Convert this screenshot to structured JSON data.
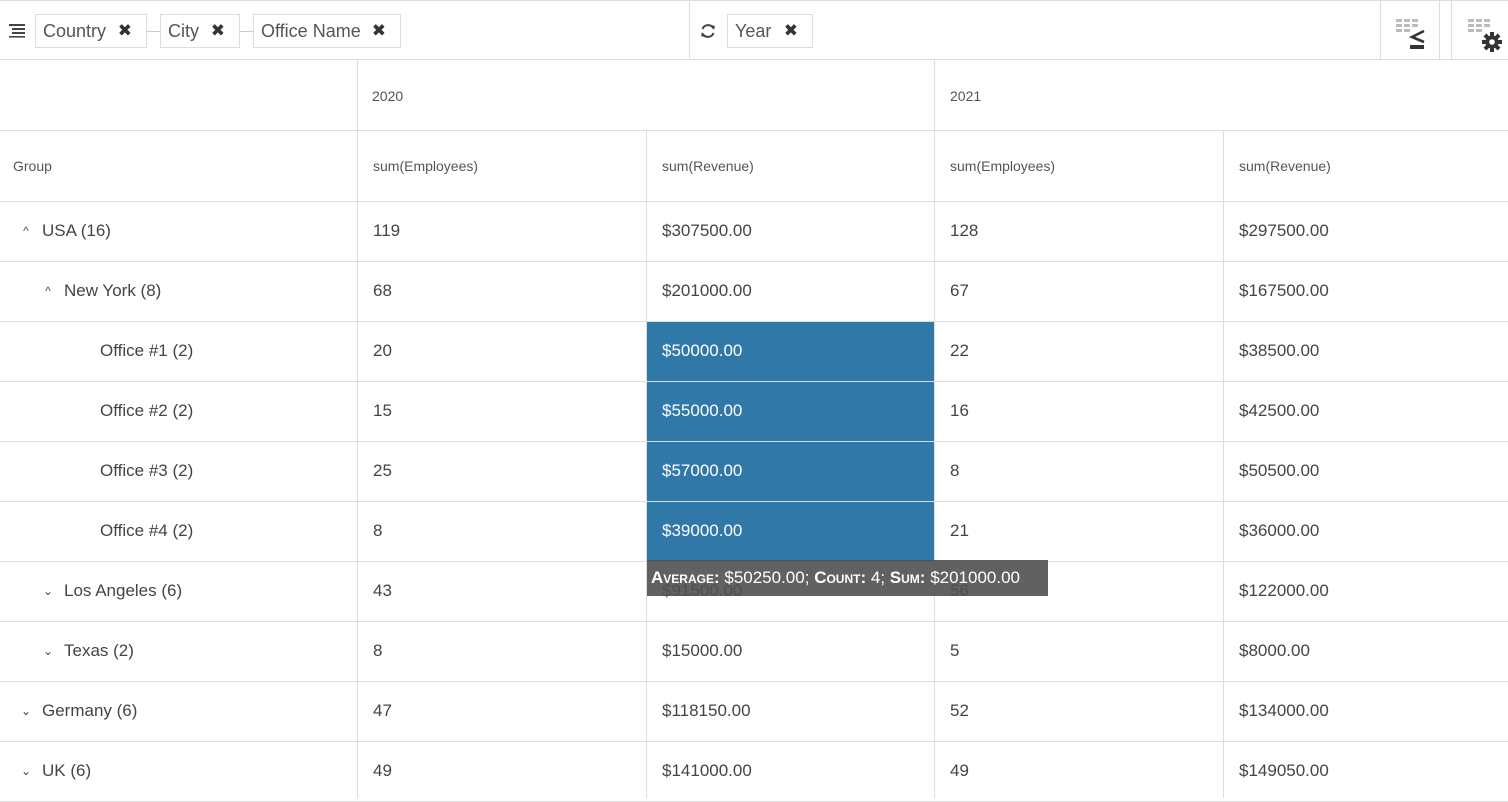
{
  "toolbar": {
    "row_chips": [
      {
        "label": "Country"
      },
      {
        "label": "City"
      },
      {
        "label": "Office Name"
      }
    ],
    "column_chips": [
      {
        "label": "Year"
      }
    ],
    "remove_icon": "close-icon"
  },
  "headers": {
    "years": [
      "2020",
      "2021"
    ],
    "group": "Group",
    "measures": [
      "sum(Employees)",
      "sum(Revenue)",
      "sum(Employees)",
      "sum(Revenue)"
    ]
  },
  "rows": [
    {
      "label": "USA (16)",
      "level": 0,
      "state": "expanded",
      "values": [
        "119",
        "$307500.00",
        "128",
        "$297500.00"
      ]
    },
    {
      "label": "New York (8)",
      "level": 1,
      "state": "expanded",
      "values": [
        "68",
        "$201000.00",
        "67",
        "$167500.00"
      ]
    },
    {
      "label": "Office #1 (2)",
      "level": 2,
      "state": "leaf",
      "values": [
        "20",
        "$50000.00",
        "22",
        "$38500.00"
      ]
    },
    {
      "label": "Office #2 (2)",
      "level": 2,
      "state": "leaf",
      "values": [
        "15",
        "$55000.00",
        "16",
        "$42500.00"
      ]
    },
    {
      "label": "Office #3 (2)",
      "level": 2,
      "state": "leaf",
      "values": [
        "25",
        "$57000.00",
        "8",
        "$50500.00"
      ]
    },
    {
      "label": "Office #4 (2)",
      "level": 2,
      "state": "leaf",
      "values": [
        "8",
        "$39000.00",
        "21",
        "$36000.00"
      ]
    },
    {
      "label": "Los Angeles (6)",
      "level": 1,
      "state": "collapsed",
      "values": [
        "43",
        "$91500.00",
        "56",
        "$122000.00"
      ]
    },
    {
      "label": "Texas (2)",
      "level": 1,
      "state": "collapsed",
      "values": [
        "8",
        "$15000.00",
        "5",
        "$8000.00"
      ]
    },
    {
      "label": "Germany (6)",
      "level": 0,
      "state": "collapsed",
      "values": [
        "47",
        "$118150.00",
        "52",
        "$134000.00"
      ]
    },
    {
      "label": "UK (6)",
      "level": 0,
      "state": "collapsed",
      "values": [
        "49",
        "$141000.00",
        "49",
        "$149050.00"
      ]
    }
  ],
  "selection": {
    "tooltip": {
      "average_label": "Average:",
      "average_value": "$50250.00;",
      "count_label": "Count:",
      "count_value": "4;",
      "sum_label": "Sum:",
      "sum_value": "$201000.00"
    }
  },
  "colors": {
    "selection": "#3078a8",
    "border": "#dddddd"
  }
}
